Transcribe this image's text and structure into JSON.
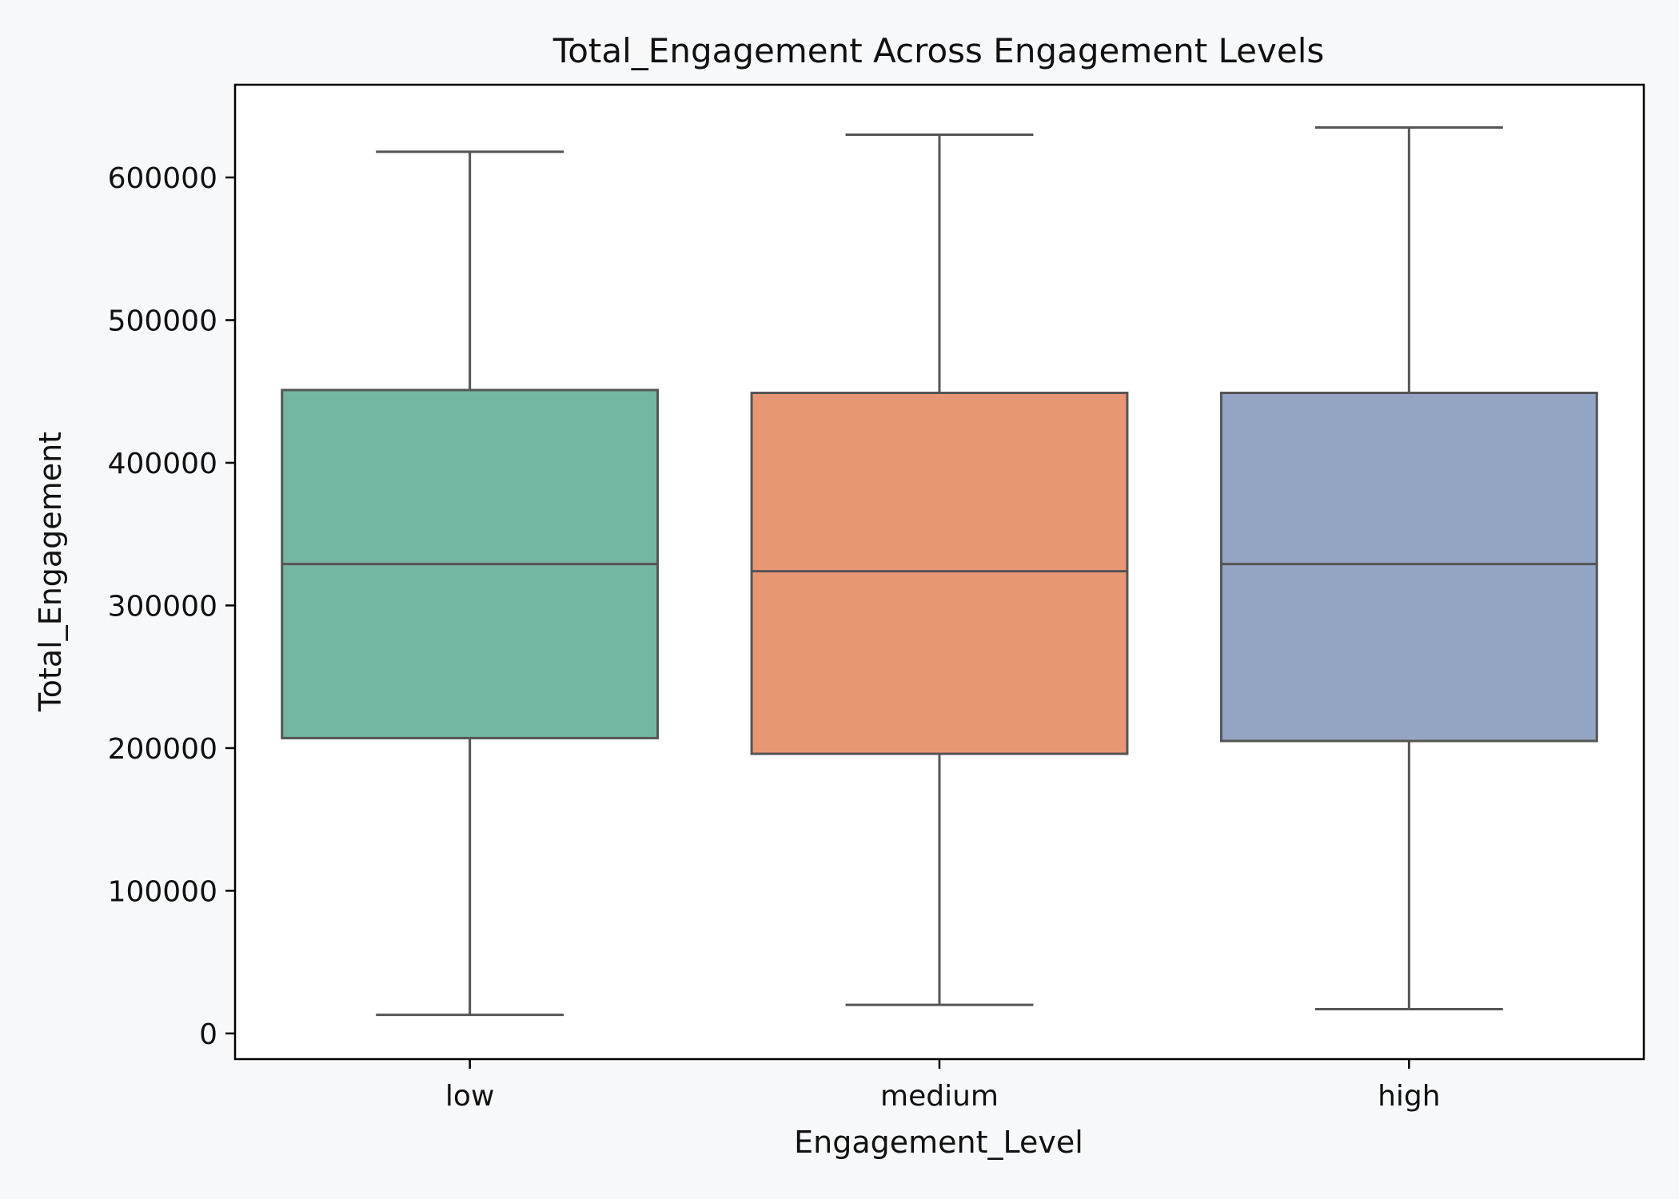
{
  "chart_data": {
    "type": "box",
    "title": "Total_Engagement Across Engagement Levels",
    "xlabel": "Engagement_Level",
    "ylabel": "Total_Engagement",
    "ylim": [
      -18000,
      665000
    ],
    "yticks": [
      0,
      100000,
      200000,
      300000,
      400000,
      500000,
      600000
    ],
    "ytick_labels": [
      "0",
      "100000",
      "200000",
      "300000",
      "400000",
      "500000",
      "600000"
    ],
    "categories": [
      "low",
      "medium",
      "high"
    ],
    "series": [
      {
        "name": "low",
        "whisker_low": 13000,
        "q1": 207000,
        "median": 329000,
        "q3": 451000,
        "whisker_high": 618000,
        "color": "#74b6a1"
      },
      {
        "name": "medium",
        "whisker_low": 20000,
        "q1": 196000,
        "median": 324000,
        "q3": 449000,
        "whisker_high": 630000,
        "color": "#e89775"
      },
      {
        "name": "high",
        "whisker_low": 17000,
        "q1": 205000,
        "median": 329000,
        "q3": 449000,
        "whisker_high": 635000,
        "color": "#94a4c3"
      }
    ],
    "grid": false
  }
}
